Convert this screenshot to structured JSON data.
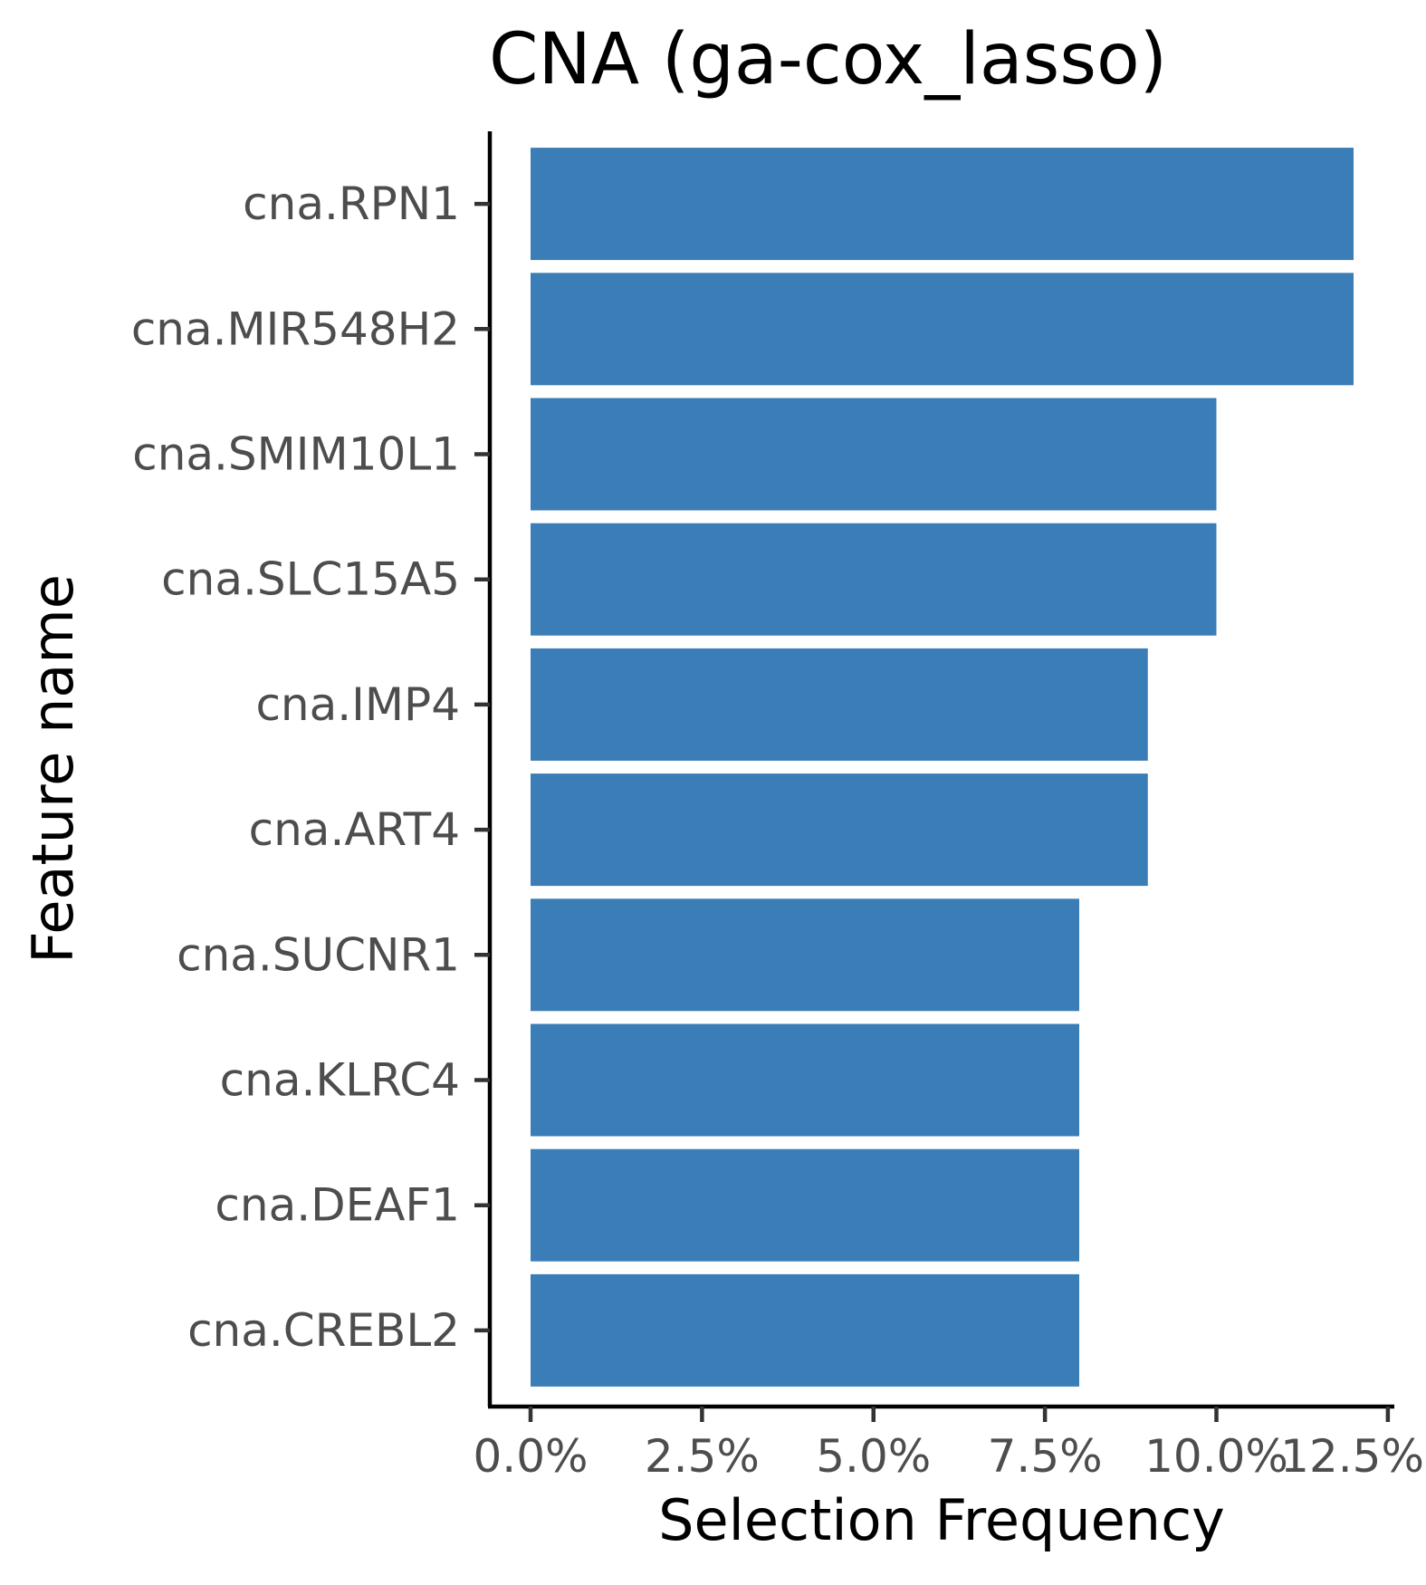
{
  "chart_data": {
    "type": "bar",
    "orientation": "horizontal",
    "title": "CNA (ga-cox_lasso)",
    "xlabel": "Selection Frequency",
    "ylabel": "Feature name",
    "categories": [
      "cna.RPN1",
      "cna.MIR548H2",
      "cna.SMIM10L1",
      "cna.SLC15A5",
      "cna.IMP4",
      "cna.ART4",
      "cna.SUCNR1",
      "cna.KLRC4",
      "cna.DEAF1",
      "cna.CREBL2"
    ],
    "values": [
      12,
      12,
      10,
      10,
      9,
      9,
      8,
      8,
      8,
      8
    ],
    "value_unit": "%",
    "xlim": [
      0,
      12.5
    ],
    "x_ticks": [
      0,
      2.5,
      5,
      7.5,
      10,
      12.5
    ],
    "x_tick_labels": [
      "0.0%",
      "2.5%",
      "5.0%",
      "7.5%",
      "10.0%",
      "12.5%"
    ],
    "bar_color": "#3A7DB7",
    "grid": false,
    "legend": "none"
  }
}
